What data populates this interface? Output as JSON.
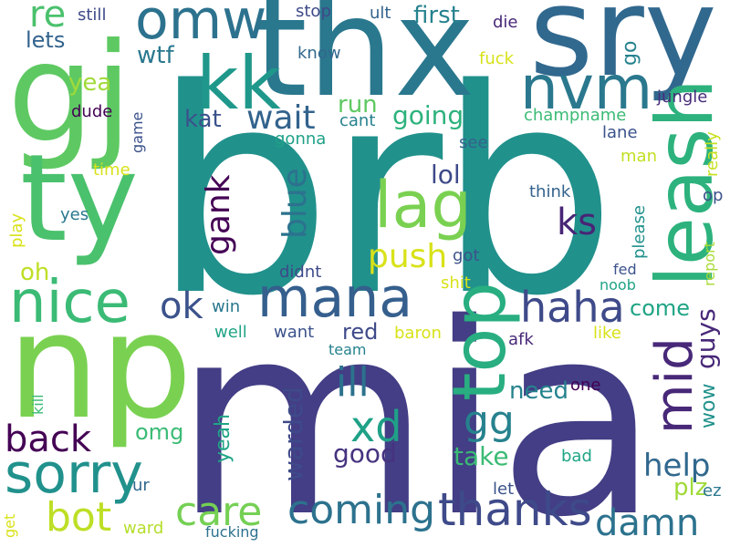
{
  "words": [
    {
      "text": "brb",
      "color": "#21918c",
      "orientation": "horizontal"
    },
    {
      "text": "mia",
      "color": "#433e85",
      "orientation": "horizontal"
    },
    {
      "text": "np",
      "color": "#7ad151",
      "orientation": "horizontal"
    },
    {
      "text": "thx",
      "color": "#2a788e",
      "orientation": "horizontal"
    },
    {
      "text": "sry",
      "color": "#31688e",
      "orientation": "horizontal"
    },
    {
      "text": "gj",
      "color": "#5ec962",
      "orientation": "horizontal"
    },
    {
      "text": "ty",
      "color": "#4ac16d",
      "orientation": "horizontal"
    },
    {
      "text": "kk",
      "color": "#1f988b",
      "orientation": "horizontal"
    },
    {
      "text": "omw",
      "color": "#2c728e",
      "orientation": "horizontal"
    },
    {
      "text": "nvm",
      "color": "#2a788e",
      "orientation": "horizontal"
    },
    {
      "text": "leash",
      "color": "#2db27d",
      "orientation": "vertical"
    },
    {
      "text": "lag",
      "color": "#7ad151",
      "orientation": "horizontal"
    },
    {
      "text": "nice",
      "color": "#3bbb75",
      "orientation": "horizontal"
    },
    {
      "text": "mana",
      "color": "#355f8d",
      "orientation": "horizontal"
    },
    {
      "text": "top",
      "color": "#28ae80",
      "orientation": "vertical"
    },
    {
      "text": "sorry",
      "color": "#21918c",
      "orientation": "horizontal"
    },
    {
      "text": "mid",
      "color": "#482878",
      "orientation": "vertical"
    },
    {
      "text": "haha",
      "color": "#3e4a89",
      "orientation": "horizontal"
    },
    {
      "text": "thanks",
      "color": "#3e4a89",
      "orientation": "horizontal"
    },
    {
      "text": "coming",
      "color": "#2c728e",
      "orientation": "horizontal"
    },
    {
      "text": "care",
      "color": "#75d054",
      "orientation": "horizontal"
    },
    {
      "text": "bot",
      "color": "#bddf26",
      "orientation": "horizontal"
    },
    {
      "text": "damn",
      "color": "#2c728e",
      "orientation": "horizontal"
    },
    {
      "text": "xd",
      "color": "#1fa187",
      "orientation": "horizontal"
    },
    {
      "text": "gg",
      "color": "#26828e",
      "orientation": "horizontal"
    },
    {
      "text": "ill",
      "color": "#2c728e",
      "orientation": "horizontal"
    },
    {
      "text": "back",
      "color": "#440154",
      "orientation": "horizontal"
    },
    {
      "text": "blue",
      "color": "#2c728e",
      "orientation": "vertical"
    },
    {
      "text": "gank",
      "color": "#440154",
      "orientation": "vertical"
    },
    {
      "text": "ok",
      "color": "#3b528b",
      "orientation": "horizontal"
    },
    {
      "text": "re",
      "color": "#4ac16d",
      "orientation": "horizontal"
    },
    {
      "text": "wait",
      "color": "#33638d",
      "orientation": "horizontal"
    },
    {
      "text": "ks",
      "color": "#482576",
      "orientation": "horizontal"
    },
    {
      "text": "push",
      "color": "#d8e219",
      "orientation": "horizontal"
    },
    {
      "text": "help",
      "color": "#31688e",
      "orientation": "horizontal"
    },
    {
      "text": "going",
      "color": "#2db27d",
      "orientation": "horizontal"
    },
    {
      "text": "first",
      "color": "#26828e",
      "orientation": "horizontal"
    },
    {
      "text": "run",
      "color": "#5ec962",
      "orientation": "horizontal"
    },
    {
      "text": "kat",
      "color": "#3b528b",
      "orientation": "horizontal"
    },
    {
      "text": "lol",
      "color": "#3e4a89",
      "orientation": "horizontal"
    },
    {
      "text": "guys",
      "color": "#482878",
      "orientation": "vertical"
    },
    {
      "text": "good",
      "color": "#46337f",
      "orientation": "horizontal"
    },
    {
      "text": "take",
      "color": "#3bbb75",
      "orientation": "horizontal"
    },
    {
      "text": "need",
      "color": "#26828e",
      "orientation": "horizontal"
    },
    {
      "text": "warded",
      "color": "#3e4a89",
      "orientation": "vertical"
    },
    {
      "text": "yeah",
      "color": "#20a486",
      "orientation": "vertical"
    },
    {
      "text": "plz",
      "color": "#a0da39",
      "orientation": "horizontal"
    },
    {
      "text": "red",
      "color": "#3e4a89",
      "orientation": "horizontal"
    },
    {
      "text": "come",
      "color": "#20a486",
      "orientation": "horizontal"
    },
    {
      "text": "omg",
      "color": "#3bbb75",
      "orientation": "horizontal"
    },
    {
      "text": "wow",
      "color": "#21918c",
      "orientation": "vertical"
    },
    {
      "text": "oh",
      "color": "#bddf26",
      "orientation": "horizontal"
    },
    {
      "text": "lets",
      "color": "#33638d",
      "orientation": "horizontal"
    },
    {
      "text": "yea",
      "color": "#a0da39",
      "orientation": "horizontal"
    },
    {
      "text": "wtf",
      "color": "#2a788e",
      "orientation": "horizontal"
    },
    {
      "text": "go",
      "color": "#26828e",
      "orientation": "vertical"
    },
    {
      "text": "jungle",
      "color": "#472c7a",
      "orientation": "horizontal"
    },
    {
      "text": "champname",
      "color": "#3bbb75",
      "orientation": "horizontal"
    },
    {
      "text": "lane",
      "color": "#3b528b",
      "orientation": "horizontal"
    },
    {
      "text": "man",
      "color": "#c2df23",
      "orientation": "horizontal"
    },
    {
      "text": "really",
      "color": "#c8e020",
      "orientation": "vertical"
    },
    {
      "text": "op",
      "color": "#3b528b",
      "orientation": "horizontal"
    },
    {
      "text": "please",
      "color": "#21918c",
      "orientation": "vertical"
    },
    {
      "text": "think",
      "color": "#33638d",
      "orientation": "horizontal"
    },
    {
      "text": "report",
      "color": "#a8db34",
      "orientation": "vertical"
    },
    {
      "text": "got",
      "color": "#3b528b",
      "orientation": "horizontal"
    },
    {
      "text": "fed",
      "color": "#3b528b",
      "orientation": "horizontal"
    },
    {
      "text": "noob",
      "color": "#20a486",
      "orientation": "horizontal"
    },
    {
      "text": "shit",
      "color": "#d8e219",
      "orientation": "horizontal"
    },
    {
      "text": "didnt",
      "color": "#3e4a89",
      "orientation": "horizontal"
    },
    {
      "text": "win",
      "color": "#2a788e",
      "orientation": "horizontal"
    },
    {
      "text": "well",
      "color": "#20a486",
      "orientation": "horizontal"
    },
    {
      "text": "want",
      "color": "#3b528b",
      "orientation": "horizontal"
    },
    {
      "text": "baron",
      "color": "#d8e219",
      "orientation": "horizontal"
    },
    {
      "text": "like",
      "color": "#d8e219",
      "orientation": "horizontal"
    },
    {
      "text": "team",
      "color": "#26828e",
      "orientation": "horizontal"
    },
    {
      "text": "afk",
      "color": "#482878",
      "orientation": "horizontal"
    },
    {
      "text": "one",
      "color": "#440154",
      "orientation": "horizontal"
    },
    {
      "text": "bad",
      "color": "#20a486",
      "orientation": "horizontal"
    },
    {
      "text": "let",
      "color": "#3b528b",
      "orientation": "horizontal"
    },
    {
      "text": "ez",
      "color": "#2a788e",
      "orientation": "horizontal"
    },
    {
      "text": "ur",
      "color": "#31688e",
      "orientation": "horizontal"
    },
    {
      "text": "ward",
      "color": "#b5de2b",
      "orientation": "horizontal"
    },
    {
      "text": "fucking",
      "color": "#2c728e",
      "orientation": "horizontal"
    },
    {
      "text": "get",
      "color": "#d8e219",
      "orientation": "vertical"
    },
    {
      "text": "kill",
      "color": "#3bbb75",
      "orientation": "vertical"
    },
    {
      "text": "still",
      "color": "#3e4a89",
      "orientation": "horizontal"
    },
    {
      "text": "stop",
      "color": "#3e4a89",
      "orientation": "horizontal"
    },
    {
      "text": "ult",
      "color": "#33638d",
      "orientation": "horizontal"
    },
    {
      "text": "die",
      "color": "#482878",
      "orientation": "horizontal"
    },
    {
      "text": "know",
      "color": "#31688e",
      "orientation": "horizontal"
    },
    {
      "text": "fuck",
      "color": "#d8e219",
      "orientation": "horizontal"
    },
    {
      "text": "dude",
      "color": "#440154",
      "orientation": "horizontal"
    },
    {
      "text": "cant",
      "color": "#26828e",
      "orientation": "horizontal"
    },
    {
      "text": "gonna",
      "color": "#1fa187",
      "orientation": "horizontal"
    },
    {
      "text": "see",
      "color": "#33638d",
      "orientation": "horizontal"
    },
    {
      "text": "game",
      "color": "#3b528b",
      "orientation": "vertical"
    },
    {
      "text": "time",
      "color": "#d8e219",
      "orientation": "horizontal"
    },
    {
      "text": "yes",
      "color": "#2a788e",
      "orientation": "horizontal"
    },
    {
      "text": "play",
      "color": "#d8e219",
      "orientation": "vertical"
    }
  ]
}
